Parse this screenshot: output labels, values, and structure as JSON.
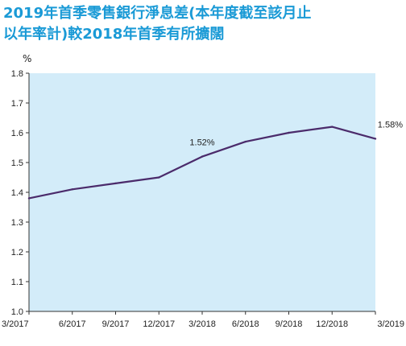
{
  "title": {
    "line1": "2019年首季零售銀行淨息差(本年度截至該月止",
    "line2": "以年率計)較2018年首季有所擴闊"
  },
  "chart_data": {
    "type": "line",
    "ylabel": "%",
    "categories": [
      "3/2017",
      "6/2017",
      "9/2017",
      "12/2017",
      "3/2018",
      "6/2018",
      "9/2018",
      "12/2018",
      "3/2019"
    ],
    "series": [
      {
        "values": [
          1.38,
          1.41,
          1.43,
          1.45,
          1.52,
          1.57,
          1.6,
          1.62,
          1.58
        ]
      }
    ],
    "ylim": [
      1.0,
      1.8
    ],
    "yticks": [
      "1.0",
      "1.1",
      "1.2",
      "1.3",
      "1.4",
      "1.5",
      "1.6",
      "1.7",
      "1.8"
    ],
    "annotations": [
      {
        "index": 4,
        "text": "1.52%"
      },
      {
        "index": 8,
        "text": "1.58%"
      }
    ],
    "grid": false,
    "colors": {
      "plot_background": "#d3ecf9",
      "line": "#4b2b6b",
      "axis": "#333333"
    }
  }
}
